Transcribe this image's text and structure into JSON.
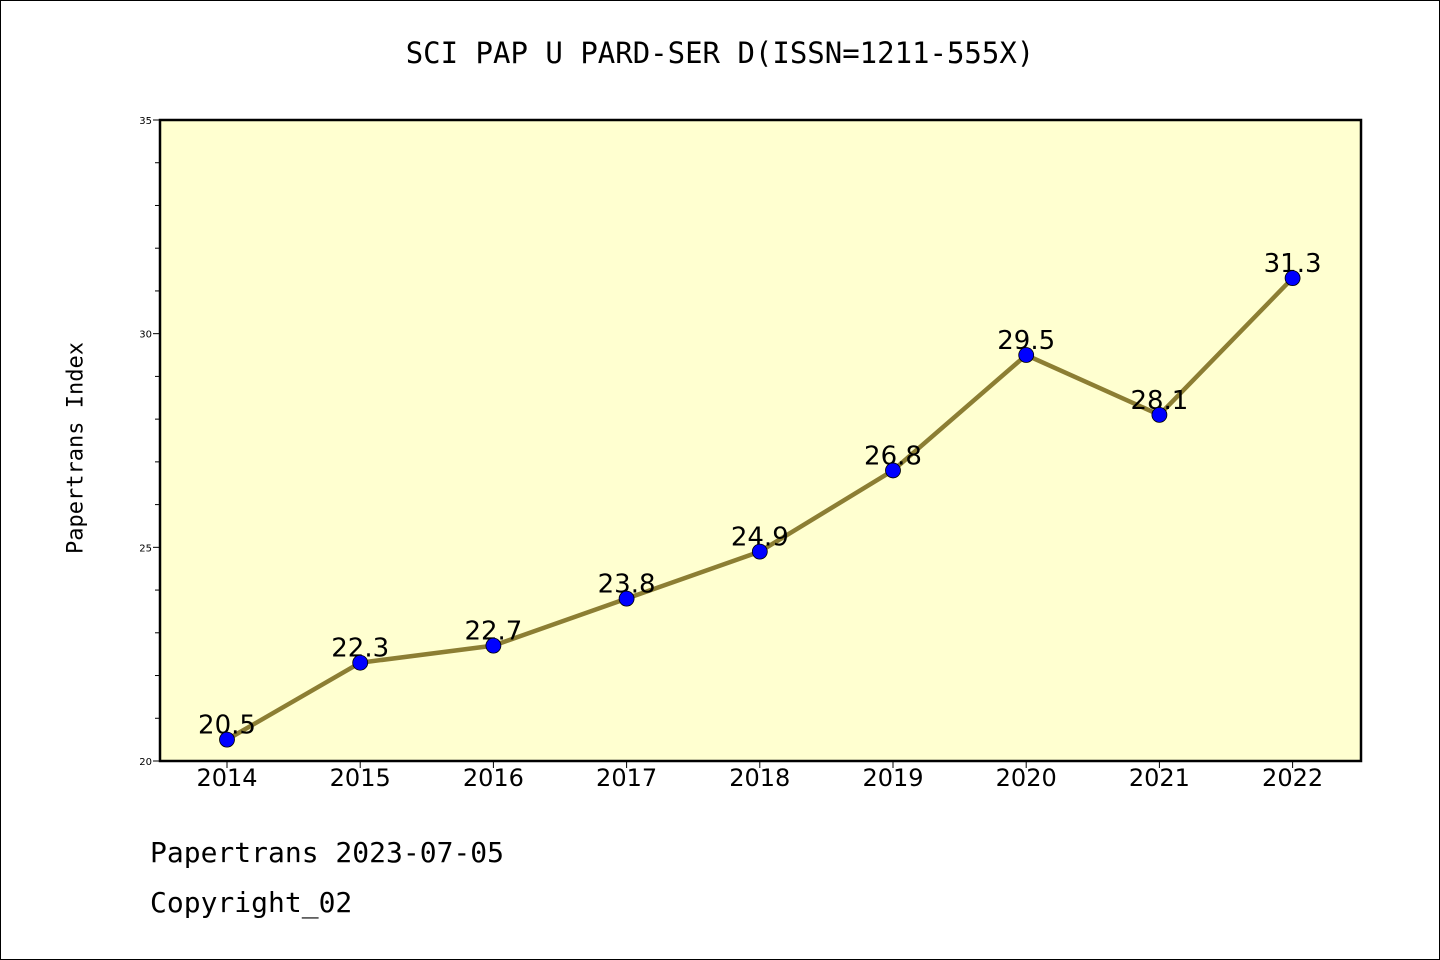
{
  "chart_data": {
    "type": "line",
    "title": "SCI PAP U PARD-SER D(ISSN=1211-555X)",
    "xlabel": "",
    "ylabel": "Papertrans Index",
    "categories": [
      "2014",
      "2015",
      "2016",
      "2017",
      "2018",
      "2019",
      "2020",
      "2021",
      "2022"
    ],
    "series": [
      {
        "values": [
          20.5,
          22.3,
          22.7,
          23.8,
          24.9,
          26.8,
          29.5,
          28.1,
          31.3
        ]
      }
    ],
    "data_labels": [
      "20.5",
      "22.3",
      "22.7",
      "23.8",
      "24.9",
      "26.8",
      "29.5",
      "28.1",
      "31.3"
    ],
    "ylim": [
      20,
      35
    ],
    "yticks": [
      20,
      25,
      30,
      35
    ],
    "grid": false,
    "plot_background": "#ffffd0",
    "line_color": "#8c7e33",
    "marker_color": "#0000ff"
  },
  "footer": {
    "line1": "Papertrans 2023-07-05",
    "line2": "Copyright_02"
  }
}
